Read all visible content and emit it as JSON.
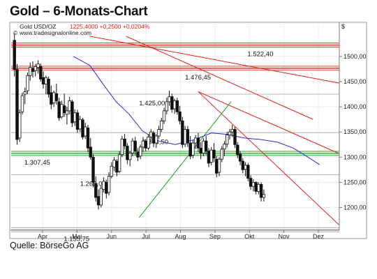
{
  "page": {
    "title": "Gold – 6-Monats-Chart",
    "source": "Quelle: BörseGo AG"
  },
  "chart_data": {
    "type": "candlestick",
    "instrument_label": "Gold USD/OZ",
    "quote_text": "1225,4000 +0,2500 +0,0204%",
    "website": "www.tradesignalonline.com",
    "currency_symbol": "$",
    "y_axis_side": "right",
    "ylim": [
      1155,
      1540
    ],
    "y_ticks": [
      {
        "value": 1200,
        "label": "1200,00"
      },
      {
        "value": 1250,
        "label": "1250,00"
      },
      {
        "value": 1300,
        "label": "1300,00"
      },
      {
        "value": 1350,
        "label": "1350,00"
      },
      {
        "value": 1400,
        "label": "1400,00"
      },
      {
        "value": 1450,
        "label": "1450,00"
      },
      {
        "value": 1500,
        "label": "1500,00"
      }
    ],
    "x_ticks": [
      "Apr",
      "Mai",
      "Jun",
      "Jul",
      "Aug",
      "Sep",
      "Okt",
      "Nov",
      "Dez"
    ],
    "grid": true,
    "horizontal_levels": [
      {
        "value": 1522.4,
        "label": "1.522,40",
        "label_at": 0.72,
        "color": "#e0201a",
        "zone": true
      },
      {
        "value": 1476.45,
        "label": "1.476,45",
        "label_at": 0.53,
        "color": "#e0201a",
        "zone": true
      },
      {
        "value": 1425.0,
        "label": "1.425,00",
        "label_at": 0.39,
        "color": "#bbbbbb",
        "zone": false
      },
      {
        "value": 1348.5,
        "label": "1.348,50",
        "label_at": 0.4,
        "color": "#bbbbbb",
        "zone": false
      },
      {
        "value": 1307.45,
        "label": "1.307,45",
        "label_at": 0.04,
        "color": "#1a9e1a",
        "zone": true
      },
      {
        "value": 1265.07,
        "label": "1.265,07",
        "label_at": 0.21,
        "color": "#bbbbbb",
        "zone": false
      },
      {
        "value": 1155.75,
        "label": "1.155,75",
        "label_at": 0.16,
        "color": "#aaaaaa",
        "zone": true
      }
    ],
    "trendlines": [
      {
        "color": "#e0201a",
        "points": [
          [
            0.24,
            1540
          ],
          [
            1.0,
            1447
          ]
        ]
      },
      {
        "color": "#e0201a",
        "points": [
          [
            0.35,
            1540
          ],
          [
            0.92,
            1375
          ]
        ]
      },
      {
        "color": "#e0201a",
        "points": [
          [
            0.57,
            1430
          ],
          [
            1.0,
            1307
          ]
        ]
      },
      {
        "color": "#e0201a",
        "points": [
          [
            0.57,
            1430
          ],
          [
            1.0,
            1165
          ]
        ]
      },
      {
        "color": "#1a9e1a",
        "points": [
          [
            0.39,
            1180
          ],
          [
            0.67,
            1410
          ]
        ]
      }
    ],
    "moving_average": {
      "color": "#2b2bd6",
      "points": [
        [
          0.19,
          1500
        ],
        [
          0.24,
          1482
        ],
        [
          0.28,
          1445
        ],
        [
          0.32,
          1410
        ],
        [
          0.36,
          1385
        ],
        [
          0.4,
          1352
        ],
        [
          0.45,
          1332
        ],
        [
          0.5,
          1325
        ],
        [
          0.56,
          1335
        ],
        [
          0.61,
          1348
        ],
        [
          0.66,
          1345
        ],
        [
          0.71,
          1338
        ],
        [
          0.76,
          1335
        ],
        [
          0.81,
          1330
        ],
        [
          0.86,
          1318
        ],
        [
          0.9,
          1302
        ],
        [
          0.94,
          1285
        ]
      ]
    },
    "candles": [
      [
        0.01,
        1532,
        1545,
        1460,
        1474
      ],
      [
        0.018,
        1474,
        1485,
        1325,
        1335
      ],
      [
        0.026,
        1338,
        1395,
        1330,
        1388
      ],
      [
        0.034,
        1390,
        1428,
        1385,
        1422
      ],
      [
        0.042,
        1425,
        1438,
        1405,
        1430
      ],
      [
        0.05,
        1432,
        1468,
        1425,
        1462
      ],
      [
        0.058,
        1462,
        1488,
        1452,
        1478
      ],
      [
        0.066,
        1476,
        1490,
        1458,
        1470
      ],
      [
        0.074,
        1472,
        1485,
        1460,
        1480
      ],
      [
        0.082,
        1478,
        1492,
        1466,
        1485
      ],
      [
        0.09,
        1480,
        1486,
        1450,
        1455
      ],
      [
        0.098,
        1458,
        1470,
        1436,
        1445
      ],
      [
        0.106,
        1445,
        1462,
        1425,
        1458
      ],
      [
        0.114,
        1455,
        1460,
        1418,
        1425
      ],
      [
        0.122,
        1428,
        1442,
        1395,
        1405
      ],
      [
        0.13,
        1408,
        1432,
        1400,
        1428
      ],
      [
        0.138,
        1426,
        1446,
        1404,
        1412
      ],
      [
        0.146,
        1410,
        1418,
        1372,
        1378
      ],
      [
        0.154,
        1380,
        1412,
        1376,
        1405
      ],
      [
        0.162,
        1402,
        1426,
        1380,
        1388
      ],
      [
        0.17,
        1385,
        1400,
        1365,
        1392
      ],
      [
        0.178,
        1392,
        1420,
        1385,
        1412
      ],
      [
        0.186,
        1410,
        1414,
        1360,
        1368
      ],
      [
        0.194,
        1370,
        1395,
        1362,
        1388
      ],
      [
        0.202,
        1388,
        1394,
        1348,
        1355
      ],
      [
        0.21,
        1356,
        1382,
        1350,
        1375
      ],
      [
        0.218,
        1374,
        1378,
        1335,
        1340
      ],
      [
        0.226,
        1342,
        1368,
        1336,
        1360
      ],
      [
        0.234,
        1358,
        1364,
        1310,
        1318
      ],
      [
        0.242,
        1320,
        1338,
        1295,
        1300
      ],
      [
        0.25,
        1300,
        1306,
        1240,
        1250
      ],
      [
        0.258,
        1248,
        1262,
        1212,
        1220
      ],
      [
        0.266,
        1222,
        1236,
        1196,
        1205
      ],
      [
        0.274,
        1205,
        1244,
        1200,
        1238
      ],
      [
        0.282,
        1236,
        1260,
        1230,
        1252
      ],
      [
        0.29,
        1250,
        1255,
        1218,
        1228
      ],
      [
        0.298,
        1230,
        1270,
        1224,
        1262
      ],
      [
        0.306,
        1262,
        1290,
        1258,
        1282
      ],
      [
        0.314,
        1280,
        1300,
        1272,
        1294
      ],
      [
        0.322,
        1292,
        1296,
        1262,
        1270
      ],
      [
        0.33,
        1272,
        1312,
        1268,
        1305
      ],
      [
        0.338,
        1305,
        1342,
        1300,
        1336
      ],
      [
        0.346,
        1336,
        1346,
        1315,
        1322
      ],
      [
        0.354,
        1322,
        1328,
        1286,
        1295
      ],
      [
        0.362,
        1295,
        1312,
        1282,
        1308
      ],
      [
        0.37,
        1308,
        1338,
        1302,
        1332
      ],
      [
        0.378,
        1332,
        1340,
        1304,
        1312
      ],
      [
        0.386,
        1310,
        1318,
        1292,
        1300
      ],
      [
        0.394,
        1302,
        1325,
        1296,
        1320
      ],
      [
        0.402,
        1320,
        1340,
        1310,
        1332
      ],
      [
        0.41,
        1332,
        1336,
        1312,
        1318
      ],
      [
        0.418,
        1318,
        1346,
        1314,
        1340
      ],
      [
        0.426,
        1340,
        1356,
        1330,
        1350
      ],
      [
        0.434,
        1348,
        1352,
        1320,
        1328
      ],
      [
        0.442,
        1328,
        1346,
        1318,
        1342
      ],
      [
        0.45,
        1342,
        1362,
        1336,
        1355
      ],
      [
        0.458,
        1355,
        1378,
        1350,
        1372
      ],
      [
        0.466,
        1372,
        1398,
        1366,
        1392
      ],
      [
        0.474,
        1392,
        1418,
        1385,
        1410
      ],
      [
        0.482,
        1410,
        1432,
        1402,
        1420
      ],
      [
        0.49,
        1420,
        1426,
        1388,
        1395
      ],
      [
        0.498,
        1396,
        1416,
        1386,
        1412
      ],
      [
        0.506,
        1412,
        1418,
        1384,
        1390
      ],
      [
        0.514,
        1390,
        1402,
        1365,
        1372
      ],
      [
        0.522,
        1372,
        1380,
        1318,
        1325
      ],
      [
        0.53,
        1326,
        1362,
        1320,
        1355
      ],
      [
        0.538,
        1355,
        1362,
        1320,
        1328
      ],
      [
        0.546,
        1328,
        1342,
        1296,
        1302
      ],
      [
        0.554,
        1304,
        1334,
        1298,
        1328
      ],
      [
        0.562,
        1328,
        1344,
        1316,
        1338
      ],
      [
        0.57,
        1338,
        1348,
        1310,
        1318
      ],
      [
        0.578,
        1318,
        1330,
        1296,
        1308
      ],
      [
        0.586,
        1308,
        1338,
        1302,
        1332
      ],
      [
        0.594,
        1332,
        1342,
        1305,
        1312
      ],
      [
        0.602,
        1312,
        1318,
        1280,
        1288
      ],
      [
        0.61,
        1290,
        1320,
        1284,
        1314
      ],
      [
        0.618,
        1314,
        1328,
        1290,
        1298
      ],
      [
        0.626,
        1296,
        1302,
        1260,
        1268
      ],
      [
        0.634,
        1270,
        1300,
        1262,
        1296
      ],
      [
        0.642,
        1296,
        1322,
        1290,
        1316
      ],
      [
        0.65,
        1316,
        1332,
        1302,
        1326
      ],
      [
        0.658,
        1326,
        1350,
        1320,
        1344
      ],
      [
        0.666,
        1344,
        1356,
        1335,
        1350
      ],
      [
        0.674,
        1350,
        1364,
        1340,
        1355
      ],
      [
        0.682,
        1355,
        1360,
        1318,
        1325
      ],
      [
        0.69,
        1324,
        1330,
        1298,
        1305
      ],
      [
        0.698,
        1306,
        1312,
        1284,
        1292
      ],
      [
        0.706,
        1292,
        1298,
        1268,
        1275
      ],
      [
        0.714,
        1276,
        1290,
        1262,
        1284
      ],
      [
        0.722,
        1284,
        1288,
        1252,
        1258
      ],
      [
        0.73,
        1258,
        1264,
        1235,
        1242
      ],
      [
        0.738,
        1242,
        1256,
        1232,
        1250
      ],
      [
        0.746,
        1250,
        1252,
        1226,
        1232
      ],
      [
        0.754,
        1232,
        1250,
        1226,
        1246
      ],
      [
        0.762,
        1246,
        1250,
        1212,
        1220
      ],
      [
        0.77,
        1220,
        1236,
        1212,
        1226
      ]
    ]
  }
}
